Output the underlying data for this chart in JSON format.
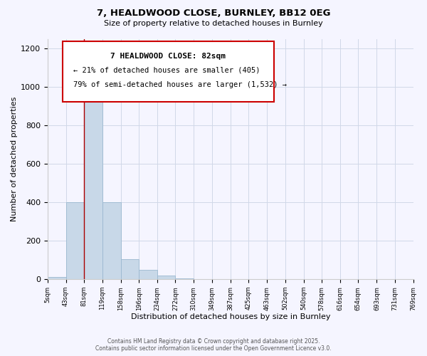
{
  "title": "7, HEALDWOOD CLOSE, BURNLEY, BB12 0EG",
  "subtitle": "Size of property relative to detached houses in Burnley",
  "xlabel": "Distribution of detached houses by size in Burnley",
  "ylabel": "Number of detached properties",
  "bar_edges": [
    5,
    43,
    81,
    119,
    158,
    196,
    234,
    272,
    310,
    349,
    387,
    425,
    463,
    502,
    540,
    578,
    616,
    654,
    693,
    731,
    769
  ],
  "bar_heights": [
    10,
    400,
    960,
    400,
    105,
    50,
    18,
    5,
    0,
    0,
    0,
    0,
    0,
    0,
    0,
    0,
    0,
    0,
    0,
    0
  ],
  "bar_color": "#c8d8e8",
  "bar_edge_color": "#9ab8d0",
  "property_line_x": 81,
  "property_line_color": "#aa0000",
  "annotation_title": "7 HEALDWOOD CLOSE: 82sqm",
  "annotation_line1": "← 21% of detached houses are smaller (405)",
  "annotation_line2": "79% of semi-detached houses are larger (1,532) →",
  "annotation_box_color": "#ffffff",
  "annotation_box_edge_color": "#cc0000",
  "tick_labels": [
    "5sqm",
    "43sqm",
    "81sqm",
    "119sqm",
    "158sqm",
    "196sqm",
    "234sqm",
    "272sqm",
    "310sqm",
    "349sqm",
    "387sqm",
    "425sqm",
    "463sqm",
    "502sqm",
    "540sqm",
    "578sqm",
    "616sqm",
    "654sqm",
    "693sqm",
    "731sqm",
    "769sqm"
  ],
  "ylim": [
    0,
    1250
  ],
  "yticks": [
    0,
    200,
    400,
    600,
    800,
    1000,
    1200
  ],
  "footnote1": "Contains HM Land Registry data © Crown copyright and database right 2025.",
  "footnote2": "Contains public sector information licensed under the Open Government Licence v3.0.",
  "background_color": "#f5f5ff",
  "grid_color": "#d0d8e8"
}
